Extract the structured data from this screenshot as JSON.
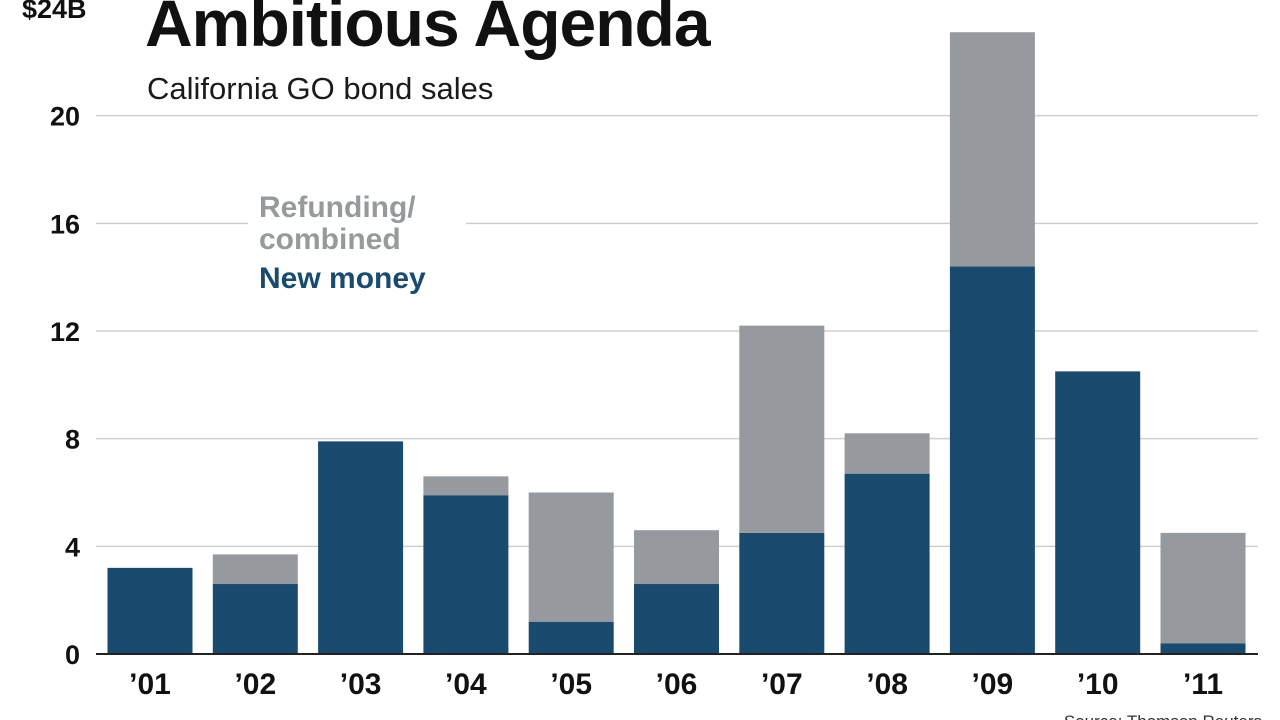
{
  "chart_data": {
    "type": "bar",
    "stacked": true,
    "title": "Ambitious Agenda",
    "subtitle": "California GO bond sales",
    "categories": [
      "’01",
      "’02",
      "’03",
      "’04",
      "’05",
      "’06",
      "’07",
      "’08",
      "’09",
      "’10",
      "’11"
    ],
    "series": [
      {
        "name": "New money",
        "color": "#1a4a6e",
        "values": [
          3.2,
          2.6,
          7.9,
          5.9,
          1.2,
          2.6,
          4.5,
          6.7,
          14.4,
          10.5,
          0.4
        ]
      },
      {
        "name": "Refunding/ combined",
        "color": "#96999e",
        "values": [
          0,
          1.1,
          0,
          0.7,
          4.8,
          2.0,
          7.7,
          1.5,
          8.7,
          0,
          4.1
        ]
      }
    ],
    "legend": {
      "refunding_line1": "Refunding/",
      "refunding_line2": "combined",
      "new_money": "New money"
    },
    "yticks": [
      0,
      4,
      8,
      12,
      16,
      20,
      24
    ],
    "ytick_labels": [
      "0",
      "4",
      "8",
      "12",
      "16",
      "20",
      "$24B"
    ],
    "ylim": [
      0,
      24
    ],
    "grid": true,
    "xlabel": "",
    "ylabel": "",
    "source": "Source: Thomson Reuters"
  }
}
